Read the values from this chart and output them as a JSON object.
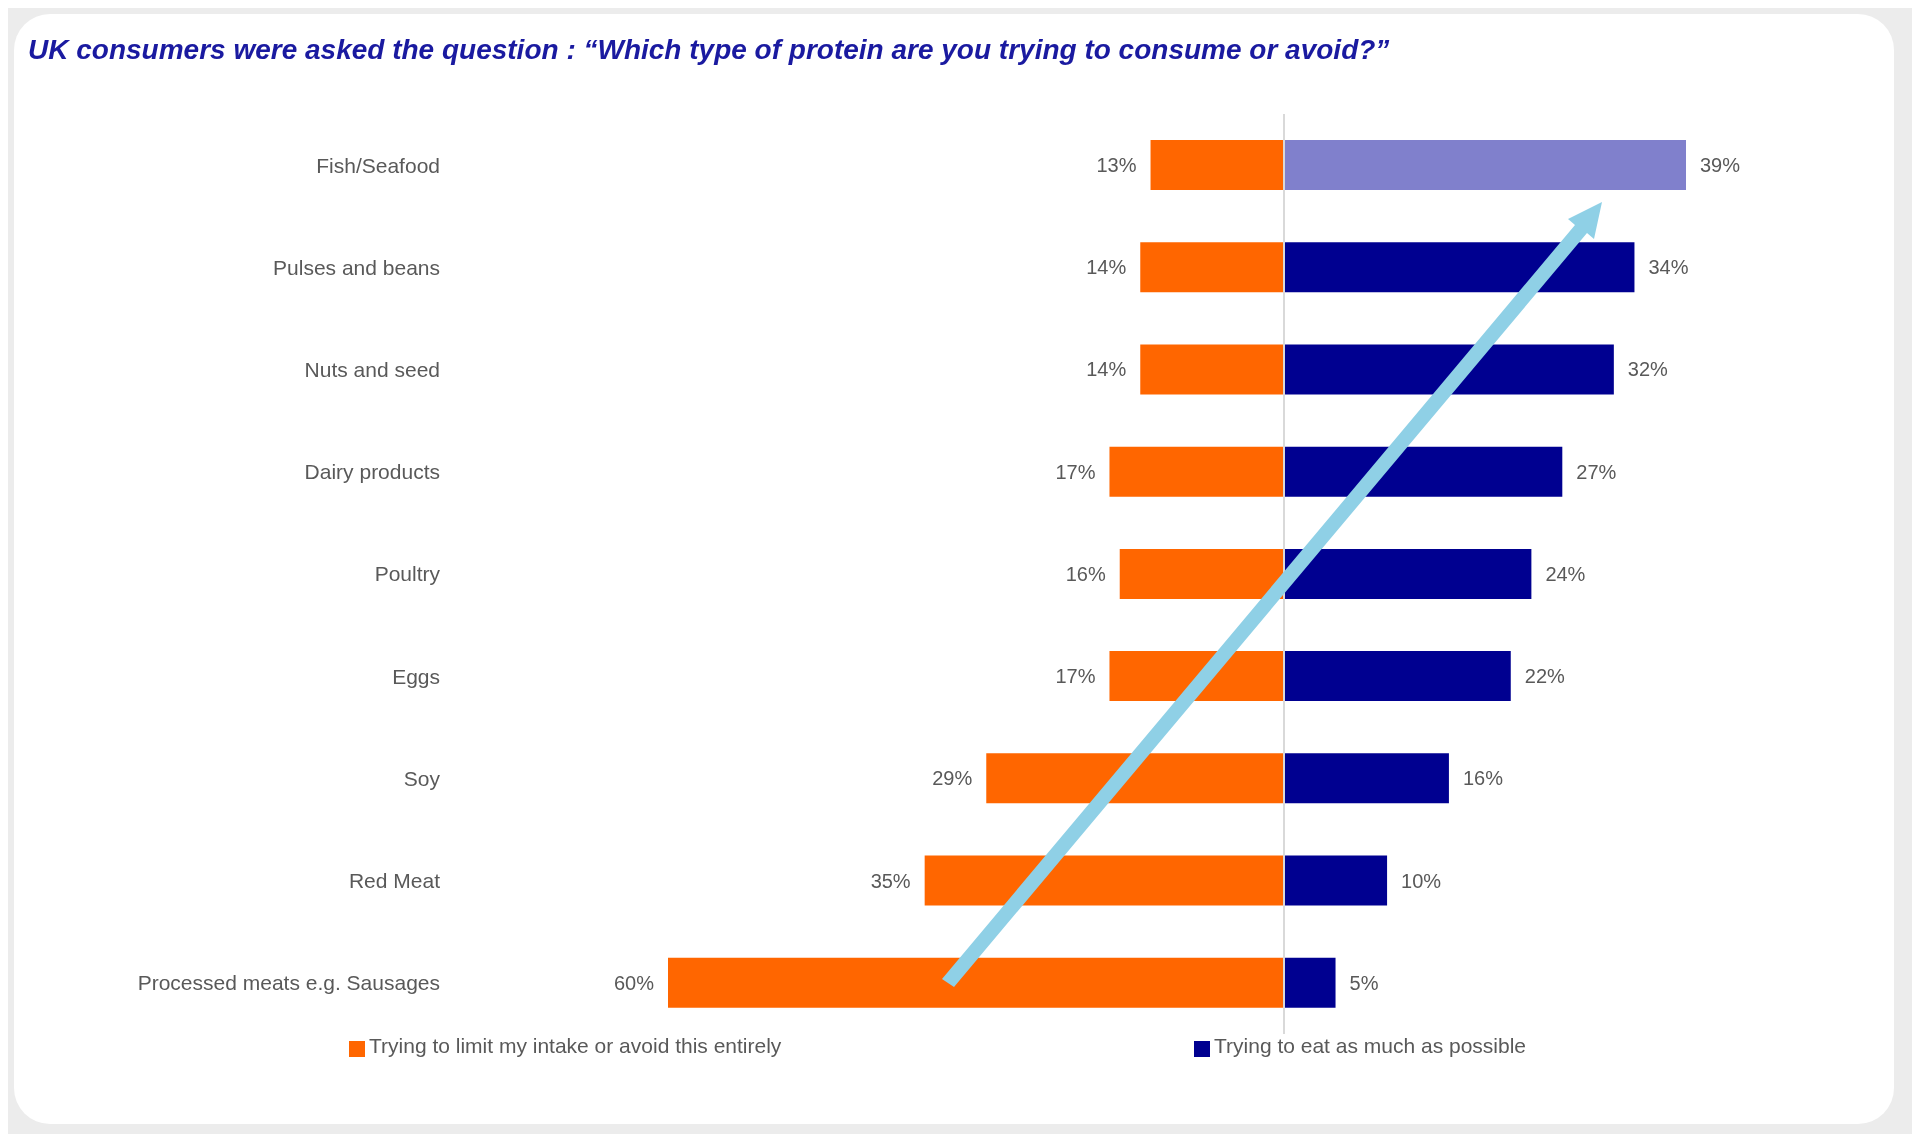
{
  "chart_data": [
    {
      "type": "bar",
      "orientation": "horizontal",
      "title": "UK consumers were asked the question : “Which type of protein are you trying to consume or avoid?”",
      "categories": [
        "Fish/Seafood",
        "Pulses and beans",
        "Nuts and seed",
        "Dairy products",
        "Poultry",
        "Eggs",
        "Soy",
        "Red Meat",
        "Processed meats e.g. Sausages"
      ],
      "series": [
        {
          "name": "Trying to limit my intake or avoid this entirely",
          "color": "#ff6600",
          "values": [
            13,
            14,
            14,
            17,
            16,
            17,
            29,
            35,
            60
          ],
          "value_labels": [
            "13%",
            "14%",
            "14%",
            "17%",
            "16%",
            "17%",
            "29%",
            "35%",
            "60%"
          ]
        }
      ],
      "xlim": [
        60,
        0
      ],
      "tick_labels": "y",
      "legend": "bottom"
    },
    {
      "type": "bar",
      "orientation": "horizontal",
      "categories": [
        null,
        null,
        null,
        null,
        null,
        null,
        null,
        null,
        null
      ],
      "series": [
        {
          "name": "Trying to eat as much as possible",
          "color": "#000090",
          "colors": [
            "#8080cc",
            "#000090",
            "#000090",
            "#000090",
            "#000090",
            "#000090",
            "#000090",
            "#000090",
            "#000090"
          ],
          "values": [
            39,
            34,
            32,
            27,
            24,
            22,
            16,
            10,
            5
          ],
          "value_labels": [
            "39%",
            "34%",
            "32%",
            "27%",
            "24%",
            "22%",
            "16%",
            "10%",
            "5%"
          ]
        }
      ],
      "xlim": [
        0,
        39
      ],
      "tick_labels": false,
      "legend": "bottom"
    }
  ]
}
